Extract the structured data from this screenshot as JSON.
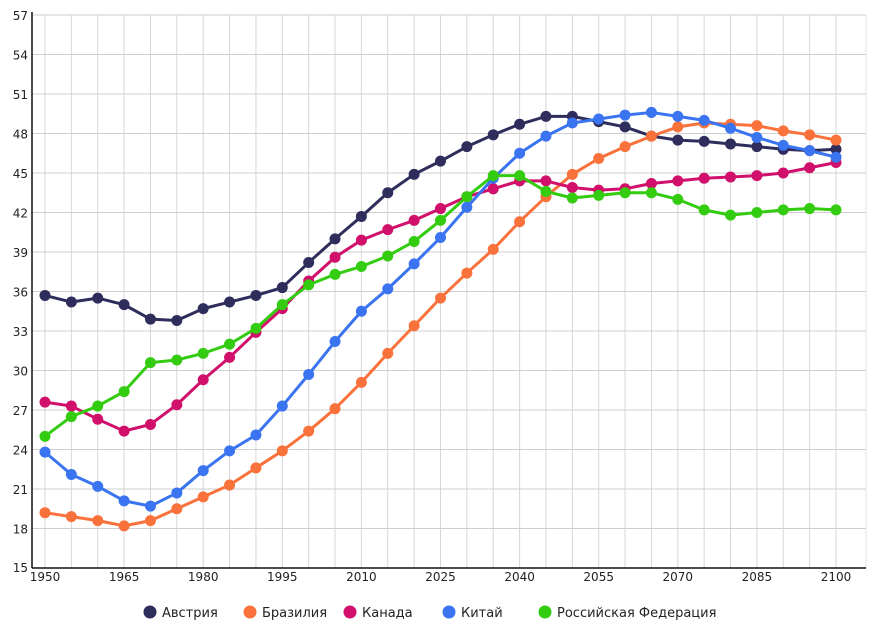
{
  "chart_data": {
    "type": "line",
    "title": "",
    "xlabel": "",
    "ylabel": "",
    "x": [
      1950,
      1955,
      1960,
      1965,
      1970,
      1975,
      1980,
      1985,
      1990,
      1995,
      2000,
      2005,
      2010,
      2015,
      2020,
      2025,
      2030,
      2035,
      2040,
      2045,
      2050,
      2055,
      2060,
      2065,
      2070,
      2075,
      2080,
      2085,
      2090,
      2095,
      2100
    ],
    "xticks": [
      "1950",
      "1965",
      "1980",
      "1995",
      "2010",
      "2025",
      "2040",
      "2055",
      "2070",
      "2085",
      "2100"
    ],
    "yticks": [
      "15",
      "18",
      "21",
      "24",
      "27",
      "30",
      "33",
      "36",
      "39",
      "42",
      "45",
      "48",
      "51",
      "54",
      "57"
    ],
    "xlim": [
      1950,
      2100
    ],
    "ylim": [
      15,
      57
    ],
    "grid": true,
    "legend_position": "bottom",
    "series": [
      {
        "name": "Австрия",
        "color": "#2e2d5c",
        "values": [
          35.7,
          35.2,
          35.5,
          35.0,
          33.9,
          33.8,
          34.7,
          35.2,
          35.7,
          36.3,
          38.2,
          40.0,
          41.7,
          43.5,
          44.9,
          45.9,
          47.0,
          47.9,
          48.7,
          49.3,
          49.3,
          48.9,
          48.5,
          47.8,
          47.5,
          47.4,
          47.2,
          47.0,
          46.8,
          46.7,
          46.8
        ]
      },
      {
        "name": "Бразилия",
        "color": "#f9723c",
        "values": [
          19.2,
          18.9,
          18.6,
          18.2,
          18.6,
          19.5,
          20.4,
          21.3,
          22.6,
          23.9,
          25.4,
          27.1,
          29.1,
          31.3,
          33.4,
          35.5,
          37.4,
          39.2,
          41.3,
          43.2,
          44.9,
          46.1,
          47.0,
          47.8,
          48.5,
          48.8,
          48.7,
          48.6,
          48.2,
          47.9,
          47.5
        ]
      },
      {
        "name": "Канада",
        "color": "#d0106b",
        "values": [
          27.6,
          27.3,
          26.3,
          25.4,
          25.9,
          27.4,
          29.3,
          31.0,
          32.9,
          34.7,
          36.8,
          38.6,
          39.9,
          40.7,
          41.4,
          42.3,
          43.2,
          43.8,
          44.4,
          44.4,
          43.9,
          43.7,
          43.8,
          44.2,
          44.4,
          44.6,
          44.7,
          44.8,
          45.0,
          45.4,
          45.8
        ]
      },
      {
        "name": "Китай",
        "color": "#3b74f0",
        "values": [
          23.8,
          22.1,
          21.2,
          20.1,
          19.7,
          20.7,
          22.4,
          23.9,
          25.1,
          27.3,
          29.7,
          32.2,
          34.5,
          36.2,
          38.1,
          40.1,
          42.4,
          44.6,
          46.5,
          47.8,
          48.8,
          49.1,
          49.4,
          49.6,
          49.3,
          49.0,
          48.4,
          47.7,
          47.1,
          46.7,
          46.2
        ]
      },
      {
        "name": "Российская Федерация",
        "color": "#33cc11",
        "values": [
          25.0,
          26.5,
          27.3,
          28.4,
          30.6,
          30.8,
          31.3,
          32.0,
          33.2,
          35.0,
          36.5,
          37.3,
          37.9,
          38.7,
          39.8,
          41.4,
          43.2,
          44.8,
          44.8,
          43.6,
          43.1,
          43.3,
          43.5,
          43.5,
          43.0,
          42.2,
          41.8,
          42.0,
          42.2,
          42.3,
          42.2
        ]
      }
    ]
  }
}
